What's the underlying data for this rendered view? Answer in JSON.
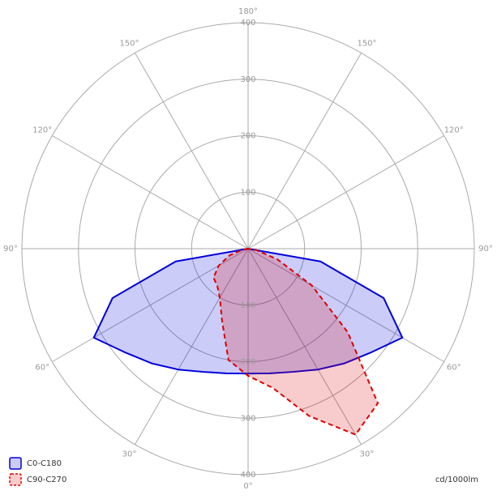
{
  "chart_data": {
    "type": "polar",
    "unit_label": "cd/1000lm",
    "x": [
      -90,
      -80,
      -70,
      -60,
      -50,
      -40,
      -30,
      -20,
      -10,
      0,
      10,
      20,
      30,
      40,
      50,
      60,
      70,
      80,
      90
    ],
    "series": [
      {
        "name": "C0-C180",
        "color": "#0000dd",
        "dashed": false,
        "values": [
          0,
          130,
          255,
          315,
          285,
          265,
          247,
          232,
          224,
          221,
          224,
          232,
          247,
          265,
          285,
          315,
          255,
          130,
          0
        ]
      },
      {
        "name": "C90-C270",
        "color": "#dd0000",
        "dashed": true,
        "values": [
          0,
          10,
          35,
          60,
          80,
          85,
          100,
          135,
          200,
          225,
          250,
          315,
          380,
          357,
          230,
          130,
          55,
          15,
          0
        ]
      }
    ],
    "rlim": [
      0,
      400
    ],
    "rticks": [
      100,
      200,
      300,
      400
    ],
    "angle_ticks": [
      {
        "value": 0,
        "label": "0°"
      },
      {
        "value": 30,
        "label": "30°"
      },
      {
        "value": 60,
        "label": "60°"
      },
      {
        "value": 90,
        "label": "90°"
      },
      {
        "value": 120,
        "label": "120°"
      },
      {
        "value": 150,
        "label": "150°"
      },
      {
        "value": 180,
        "label": "180°"
      },
      {
        "value": -150,
        "label": "150°"
      },
      {
        "value": -120,
        "label": "120°"
      },
      {
        "value": -90,
        "label": "90°"
      },
      {
        "value": -60,
        "label": "60°"
      },
      {
        "value": -30,
        "label": "30°"
      }
    ],
    "grid": true
  }
}
